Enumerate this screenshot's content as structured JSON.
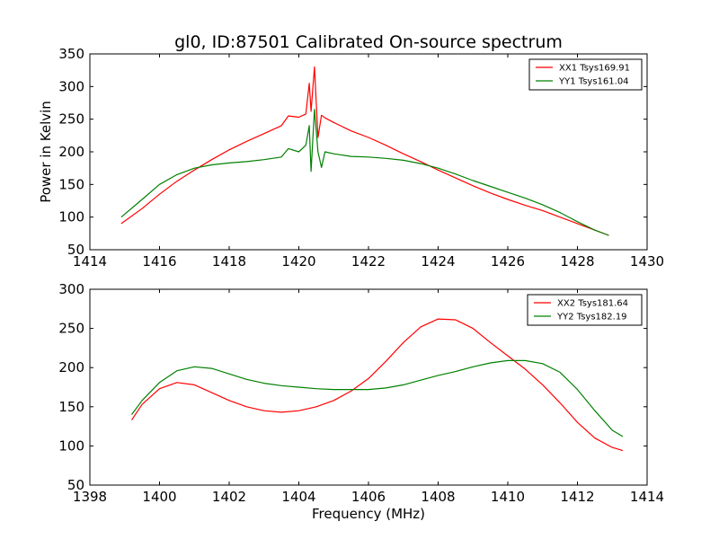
{
  "chart_data": [
    {
      "type": "line",
      "title": "gl0, ID:87501 Calibrated On-source spectrum",
      "xlabel": "",
      "ylabel": "Power in Kelvin",
      "xlim": [
        1414,
        1430
      ],
      "ylim": [
        50,
        350
      ],
      "xticks": [
        1414,
        1416,
        1418,
        1420,
        1422,
        1424,
        1426,
        1428,
        1430
      ],
      "yticks": [
        50,
        100,
        150,
        200,
        250,
        300,
        350
      ],
      "grid": false,
      "legend": "top-right",
      "series": [
        {
          "name": "XX1 Tsys169.91",
          "color": "#ff0000",
          "x": [
            1414.9,
            1415.5,
            1416.0,
            1416.5,
            1417.0,
            1417.5,
            1418.0,
            1418.5,
            1419.0,
            1419.5,
            1419.7,
            1420.0,
            1420.2,
            1420.3,
            1420.35,
            1420.45,
            1420.55,
            1420.65,
            1420.75,
            1421.0,
            1421.5,
            1422.0,
            1422.5,
            1423.0,
            1423.5,
            1424.0,
            1424.5,
            1425.0,
            1425.5,
            1426.0,
            1426.5,
            1427.0,
            1427.5,
            1428.0,
            1428.5,
            1428.9
          ],
          "y": [
            90,
            113,
            135,
            155,
            172,
            188,
            203,
            216,
            228,
            240,
            255,
            253,
            258,
            305,
            262,
            330,
            222,
            256,
            252,
            245,
            232,
            222,
            210,
            197,
            185,
            172,
            160,
            148,
            137,
            127,
            118,
            110,
            100,
            90,
            80,
            72
          ]
        },
        {
          "name": "YY1 Tsys161.04",
          "color": "#008000",
          "x": [
            1414.9,
            1415.5,
            1416.0,
            1416.5,
            1417.0,
            1417.5,
            1418.0,
            1418.5,
            1419.0,
            1419.5,
            1419.7,
            1420.0,
            1420.2,
            1420.3,
            1420.35,
            1420.45,
            1420.55,
            1420.65,
            1420.75,
            1421.0,
            1421.5,
            1422.0,
            1422.5,
            1423.0,
            1423.5,
            1424.0,
            1424.5,
            1425.0,
            1425.5,
            1426.0,
            1426.5,
            1427.0,
            1427.5,
            1428.0,
            1428.5,
            1428.9
          ],
          "y": [
            100,
            127,
            150,
            165,
            175,
            180,
            183,
            185,
            188,
            192,
            205,
            200,
            210,
            240,
            170,
            265,
            200,
            176,
            200,
            197,
            193,
            192,
            190,
            187,
            182,
            175,
            166,
            156,
            147,
            138,
            129,
            119,
            107,
            93,
            80,
            72
          ]
        }
      ]
    },
    {
      "type": "line",
      "title": "",
      "xlabel": "Frequency (MHz)",
      "ylabel": "",
      "xlim": [
        1398,
        1414
      ],
      "ylim": [
        50,
        300
      ],
      "xticks": [
        1398,
        1400,
        1402,
        1404,
        1406,
        1408,
        1410,
        1412,
        1414
      ],
      "yticks": [
        50,
        100,
        150,
        200,
        250,
        300
      ],
      "grid": false,
      "legend": "top-right",
      "series": [
        {
          "name": "XX2 Tsys181.64",
          "color": "#ff0000",
          "x": [
            1399.2,
            1399.5,
            1400.0,
            1400.5,
            1401.0,
            1401.5,
            1402.0,
            1402.5,
            1403.0,
            1403.5,
            1404.0,
            1404.5,
            1405.0,
            1405.5,
            1406.0,
            1406.5,
            1407.0,
            1407.5,
            1408.0,
            1408.5,
            1409.0,
            1409.5,
            1410.0,
            1410.5,
            1411.0,
            1411.5,
            1412.0,
            1412.5,
            1413.0,
            1413.3
          ],
          "y": [
            133,
            153,
            173,
            181,
            178,
            168,
            158,
            150,
            145,
            143,
            145,
            150,
            158,
            170,
            186,
            208,
            232,
            252,
            262,
            261,
            250,
            232,
            215,
            198,
            178,
            155,
            130,
            110,
            98,
            94
          ]
        },
        {
          "name": "YY2 Tsys182.19",
          "color": "#008000",
          "x": [
            1399.2,
            1399.5,
            1400.0,
            1400.5,
            1401.0,
            1401.5,
            1402.0,
            1402.5,
            1403.0,
            1403.5,
            1404.0,
            1404.5,
            1405.0,
            1405.5,
            1406.0,
            1406.5,
            1407.0,
            1407.5,
            1408.0,
            1408.5,
            1409.0,
            1409.5,
            1410.0,
            1410.5,
            1411.0,
            1411.5,
            1412.0,
            1412.5,
            1413.0,
            1413.3
          ],
          "y": [
            140,
            158,
            181,
            196,
            201,
            199,
            192,
            185,
            180,
            177,
            175,
            173,
            172,
            172,
            172,
            174,
            178,
            184,
            190,
            195,
            201,
            206,
            209,
            209,
            205,
            194,
            172,
            145,
            120,
            112
          ]
        }
      ]
    }
  ]
}
